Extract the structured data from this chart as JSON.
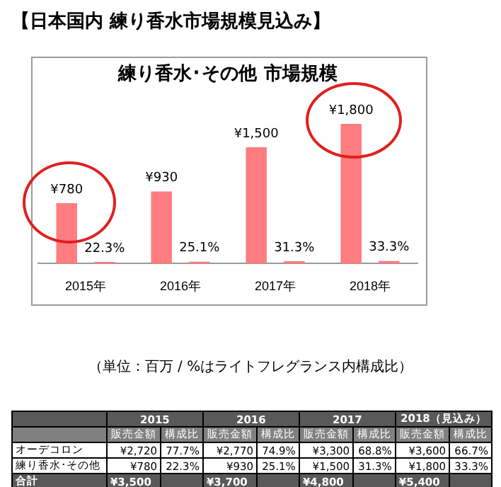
{
  "chart_data": [
    {
      "type": "other",
      "title": "【日本国内 練り香水市場規模見込み】"
    },
    {
      "type": "bar",
      "title": "練り香水･その他 市場規模",
      "categories": [
        "2015年",
        "2016年",
        "2017年",
        "2018年"
      ],
      "series": [
        {
          "color": "#ff7c80",
          "values": [
            780,
            930,
            1500,
            1800
          ],
          "value_labels": [
            "¥780",
            "¥930",
            "¥1,500",
            "¥1,800"
          ]
        },
        {
          "color": "#ff7c80",
          "values": [
            22.3,
            25.1,
            31.3,
            33.3
          ],
          "value_labels": [
            "22.3%",
            "25.1%",
            "31.3%",
            "33.3%"
          ]
        }
      ],
      "annotations": [
        "（単位：百万 / %はライトフレグランス内構成比）"
      ]
    },
    {
      "type": "other",
      "cell_labels": [
        [
          null,
          "2015",
          null,
          "2016",
          null,
          "2017",
          null,
          "2018（見込み）",
          null
        ],
        [
          null,
          "販売金額",
          "構成比",
          "販売金額",
          "構成比",
          "販売金額",
          "構成比",
          "販売金額",
          "構成比"
        ],
        [
          "オーデコロン",
          "¥2,720",
          "77.7%",
          "¥2,770",
          "74.9%",
          "¥3,300",
          "68.8%",
          "¥3,600",
          "66.7%"
        ],
        [
          "練り香水･その他",
          "¥780",
          "22.3%",
          "¥930",
          "25.1%",
          "¥1,500",
          "31.3%",
          "¥1,800",
          "33.3%"
        ],
        [
          "合計",
          "¥3,500",
          null,
          "¥3,700",
          null,
          "¥4,800",
          null,
          "¥5,400",
          null
        ]
      ]
    }
  ]
}
